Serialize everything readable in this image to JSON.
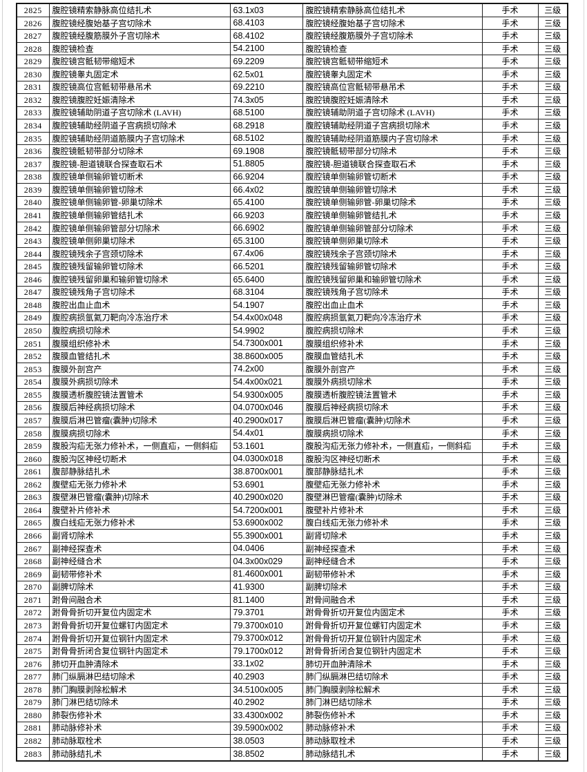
{
  "page": {
    "background": "#ffffff",
    "border_color": "#222222",
    "text_color": "#000000"
  },
  "table": {
    "rows": [
      [
        "2825",
        "腹腔镜精索静脉高位结扎术",
        "63.1x03",
        "腹腔镜精索静脉高位结扎术",
        "手术",
        "三级"
      ],
      [
        "2826",
        "腹腔镜经腹始基子宫切除术",
        "68.4103",
        "腹腔镜经腹始基子宫切除术",
        "手术",
        "三级"
      ],
      [
        "2827",
        "腹腔镜经腹筋膜外子宫切除术",
        "68.4102",
        "腹腔镜经腹筋膜外子宫切除术",
        "手术",
        "三级"
      ],
      [
        "2828",
        "腹腔镜检查",
        "54.2100",
        "腹腔镜检查",
        "手术",
        "三级"
      ],
      [
        "2829",
        "腹腔镜宫骶韧带缩短术",
        "69.2209",
        "腹腔镜宫骶韧带缩短术",
        "手术",
        "三级"
      ],
      [
        "2830",
        "腹腔镜睾丸固定术",
        "62.5x01",
        "腹腔镜睾丸固定术",
        "手术",
        "三级"
      ],
      [
        "2831",
        "腹腔镜高位宫骶韧带悬吊术",
        "69.2210",
        "腹腔镜高位宫骶韧带悬吊术",
        "手术",
        "三级"
      ],
      [
        "2832",
        "腹腔镜腹腔妊娠清除术",
        "74.3x05",
        "腹腔镜腹腔妊娠清除术",
        "手术",
        "三级"
      ],
      [
        "2833",
        "腹腔镜辅助阴道子宫切除术 (LAVH)",
        "68.5100",
        "腹腔镜辅助阴道子宫切除术 (LAVH)",
        "手术",
        "三级"
      ],
      [
        "2834",
        "腹腔镜辅助经阴道子宫病损切除术",
        "68.2918",
        "腹腔镜辅助经阴道子宫病损切除术",
        "手术",
        "三级"
      ],
      [
        "2835",
        "腹腔镜辅助经阴道筋膜内子宫切除术",
        "68.5102",
        "腹腔镜辅助经阴道筋膜内子宫切除术",
        "手术",
        "三级"
      ],
      [
        "2836",
        "腹腔镜骶韧带部分切除术",
        "69.1908",
        "腹腔镜骶韧带部分切除术",
        "手术",
        "三级"
      ],
      [
        "2837",
        "腹腔镜-胆道镜联合探查取石术",
        "51.8805",
        "腹腔镜-胆道镜联合探查取石术",
        "手术",
        "三级"
      ],
      [
        "2838",
        "腹腔镜单侧输卵管切断术",
        "66.9204",
        "腹腔镜单侧输卵管切断术",
        "手术",
        "三级"
      ],
      [
        "2839",
        "腹腔镜单侧输卵管切除术",
        "66.4x02",
        "腹腔镜单侧输卵管切除术",
        "手术",
        "三级"
      ],
      [
        "2840",
        "腹腔镜单侧输卵管-卵巢切除术",
        "65.4100",
        "腹腔镜单侧输卵管-卵巢切除术",
        "手术",
        "三级"
      ],
      [
        "2841",
        "腹腔镜单侧输卵管结扎术",
        "66.9203",
        "腹腔镜单侧输卵管结扎术",
        "手术",
        "三级"
      ],
      [
        "2842",
        "腹腔镜单侧输卵管部分切除术",
        "66.6902",
        "腹腔镜单侧输卵管部分切除术",
        "手术",
        "三级"
      ],
      [
        "2843",
        "腹腔镜单侧卵巢切除术",
        "65.3100",
        "腹腔镜单侧卵巢切除术",
        "手术",
        "三级"
      ],
      [
        "2844",
        "腹腔镜残余子宫颈切除术",
        "67.4x06",
        "腹腔镜残余子宫颈切除术",
        "手术",
        "三级"
      ],
      [
        "2845",
        "腹腔镜残留输卵管切除术",
        "66.5201",
        "腹腔镜残留输卵管切除术",
        "手术",
        "三级"
      ],
      [
        "2846",
        "腹腔镜残留卵巢和输卵管切除术",
        "65.6400",
        "腹腔镜残留卵巢和输卵管切除术",
        "手术",
        "三级"
      ],
      [
        "2847",
        "腹腔镜残角子宫切除术",
        "68.3104",
        "腹腔镜残角子宫切除术",
        "手术",
        "三级"
      ],
      [
        "2848",
        "腹腔出血止血术",
        "54.1907",
        "腹腔出血止血术",
        "手术",
        "三级"
      ],
      [
        "2849",
        "腹腔病损氩氦刀靶向冷冻治疗术",
        "54.4x00x048",
        "腹腔病损氩氦刀靶向冷冻治疗术",
        "手术",
        "三级"
      ],
      [
        "2850",
        "腹腔病损切除术",
        "54.9902",
        "腹腔病损切除术",
        "手术",
        "三级"
      ],
      [
        "2851",
        "腹膜组织修补术",
        "54.7300x001",
        "腹膜组织修补术",
        "手术",
        "三级"
      ],
      [
        "2852",
        "腹膜血管结扎术",
        "38.8600x005",
        "腹膜血管结扎术",
        "手术",
        "三级"
      ],
      [
        "2853",
        "腹膜外剖宫产",
        "74.2x00",
        "腹膜外剖宫产",
        "手术",
        "三级"
      ],
      [
        "2854",
        "腹膜外病损切除术",
        "54.4x00x021",
        "腹膜外病损切除术",
        "手术",
        "三级"
      ],
      [
        "2855",
        "腹膜透析腹腔镜法置管术",
        "54.9300x005",
        "腹膜透析腹腔镜法置管术",
        "手术",
        "三级"
      ],
      [
        "2856",
        "腹膜后神经病损切除术",
        "04.0700x046",
        "腹膜后神经病损切除术",
        "手术",
        "三级"
      ],
      [
        "2857",
        "腹膜后淋巴管瘤(囊肿)切除术",
        "40.2900x017",
        "腹膜后淋巴管瘤(囊肿)切除术",
        "手术",
        "三级"
      ],
      [
        "2858",
        "腹膜病损切除术",
        "54.4x01",
        "腹膜病损切除术",
        "手术",
        "三级"
      ],
      [
        "2859",
        "腹股沟疝无张力修补术，一侧直疝，一侧斜疝",
        "53.1601",
        "腹股沟疝无张力修补术，一侧直疝，一侧斜疝",
        "手术",
        "三级"
      ],
      [
        "2860",
        "腹股沟区神经切断术",
        "04.0300x018",
        "腹股沟区神经切断术",
        "手术",
        "三级"
      ],
      [
        "2861",
        "腹部静脉结扎术",
        "38.8700x001",
        "腹部静脉结扎术",
        "手术",
        "三级"
      ],
      [
        "2862",
        "腹壁疝无张力修补术",
        "53.6901",
        "腹壁疝无张力修补术",
        "手术",
        "三级"
      ],
      [
        "2863",
        "腹壁淋巴管瘤(囊肿)切除术",
        "40.2900x020",
        "腹壁淋巴管瘤(囊肿)切除术",
        "手术",
        "三级"
      ],
      [
        "2864",
        "腹壁补片修补术",
        "54.7200x001",
        "腹壁补片修补术",
        "手术",
        "三级"
      ],
      [
        "2865",
        "腹白线疝无张力修补术",
        "53.6900x002",
        "腹白线疝无张力修补术",
        "手术",
        "三级"
      ],
      [
        "2866",
        "副肾切除术",
        "55.3900x001",
        "副肾切除术",
        "手术",
        "三级"
      ],
      [
        "2867",
        "副神经探查术",
        "04.0406",
        "副神经探查术",
        "手术",
        "三级"
      ],
      [
        "2868",
        "副神经缝合术",
        "04.3x00x029",
        "副神经缝合术",
        "手术",
        "三级"
      ],
      [
        "2869",
        "副韧带修补术",
        "81.4600x001",
        "副韧带修补术",
        "手术",
        "三级"
      ],
      [
        "2870",
        "副脾切除术",
        "41.9300",
        "副脾切除术",
        "手术",
        "三级"
      ],
      [
        "2871",
        "跗骨间融合术",
        "81.1400",
        "跗骨间融合术",
        "手术",
        "三级"
      ],
      [
        "2872",
        "跗骨骨折切开复位内固定术",
        "79.3701",
        "跗骨骨折切开复位内固定术",
        "手术",
        "三级"
      ],
      [
        "2873",
        "跗骨骨折切开复位螺钉内固定术",
        "79.3700x010",
        "跗骨骨折切开复位螺钉内固定术",
        "手术",
        "三级"
      ],
      [
        "2874",
        "跗骨骨折切开复位钢针内固定术",
        "79.3700x012",
        "跗骨骨折切开复位钢针内固定术",
        "手术",
        "三级"
      ],
      [
        "2875",
        "跗骨骨折闭合复位钢针内固定术",
        "79.1700x012",
        "跗骨骨折闭合复位钢针内固定术",
        "手术",
        "三级"
      ],
      [
        "2876",
        "肺切开血肿清除术",
        "33.1x02",
        "肺切开血肿清除术",
        "手术",
        "三级"
      ],
      [
        "2877",
        "肺门纵膈淋巴结切除术",
        "40.2903",
        "肺门纵膈淋巴结切除术",
        "手术",
        "三级"
      ],
      [
        "2878",
        "肺门胸膜剥除松解术",
        "34.5100x005",
        "肺门胸膜剥除松解术",
        "手术",
        "三级"
      ],
      [
        "2879",
        "肺门淋巴结切除术",
        "40.2902",
        "肺门淋巴结切除术",
        "手术",
        "三级"
      ],
      [
        "2880",
        "肺裂伤修补术",
        "33.4300x002",
        "肺裂伤修补术",
        "手术",
        "三级"
      ],
      [
        "2881",
        "肺动脉修补术",
        "39.5900x002",
        "肺动脉修补术",
        "手术",
        "三级"
      ],
      [
        "2882",
        "肺动脉取栓术",
        "38.0503",
        "肺动脉取栓术",
        "手术",
        "三级"
      ],
      [
        "2883",
        "肺动脉结扎术",
        "38.8502",
        "肺动脉结扎术",
        "手术",
        "三级"
      ]
    ]
  }
}
